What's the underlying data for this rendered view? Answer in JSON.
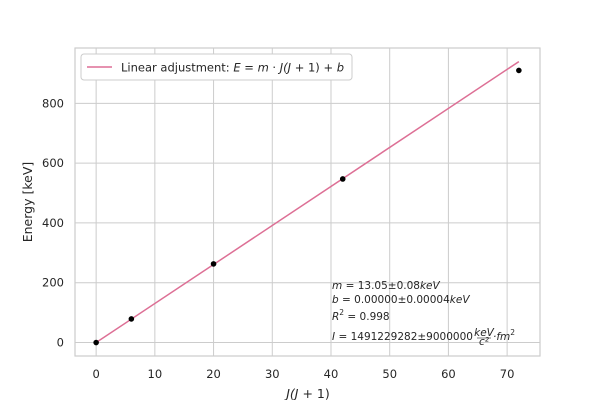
{
  "chart_data": {
    "type": "scatter",
    "title": "",
    "xlabel_prefix": "J",
    "xlabel_mid": "(J",
    "xlabel_suffix": " + 1)",
    "ylabel": "Energy [keV]",
    "xlim": [
      -3.6,
      75.6
    ],
    "ylim": [
      -45,
      985
    ],
    "xticks": [
      0,
      10,
      20,
      30,
      40,
      50,
      60,
      70
    ],
    "yticks": [
      0,
      200,
      400,
      600,
      800
    ],
    "grid": true,
    "legend_position": "top-left",
    "series": [
      {
        "name": "Linear adjustment: E = m · J(J + 1) + b",
        "kind": "line",
        "color": "#dd6f95",
        "x": [
          0,
          72
        ],
        "y": [
          0,
          939.6
        ]
      },
      {
        "kind": "points",
        "color": "#000000",
        "x": [
          0,
          6,
          20,
          42,
          72
        ],
        "y": [
          0,
          79,
          263,
          547,
          910
        ]
      }
    ],
    "legend": {
      "prefix": "Linear adjustment: ",
      "equation": {
        "E": "E",
        "eq": " = ",
        "m": "m",
        "dot": " · ",
        "J1": "J",
        "paren": "(J",
        "plus": " + 1) + ",
        "b": "b"
      }
    },
    "annotations": {
      "m_line": {
        "var": "m",
        "text": " = 13.05±0.08",
        "unit": "keV"
      },
      "b_line": {
        "var": "b",
        "text": " = 0.00000±0.00004",
        "unit": "keV"
      },
      "r_line": {
        "var": "R",
        "sup": "2",
        "text": " = 0.998"
      },
      "i_line": {
        "var": "I",
        "text": " = 1491229282±9000000",
        "frac_num": "keV",
        "frac_den": "c²",
        "unit": "·fm",
        "sup": "2"
      }
    }
  }
}
